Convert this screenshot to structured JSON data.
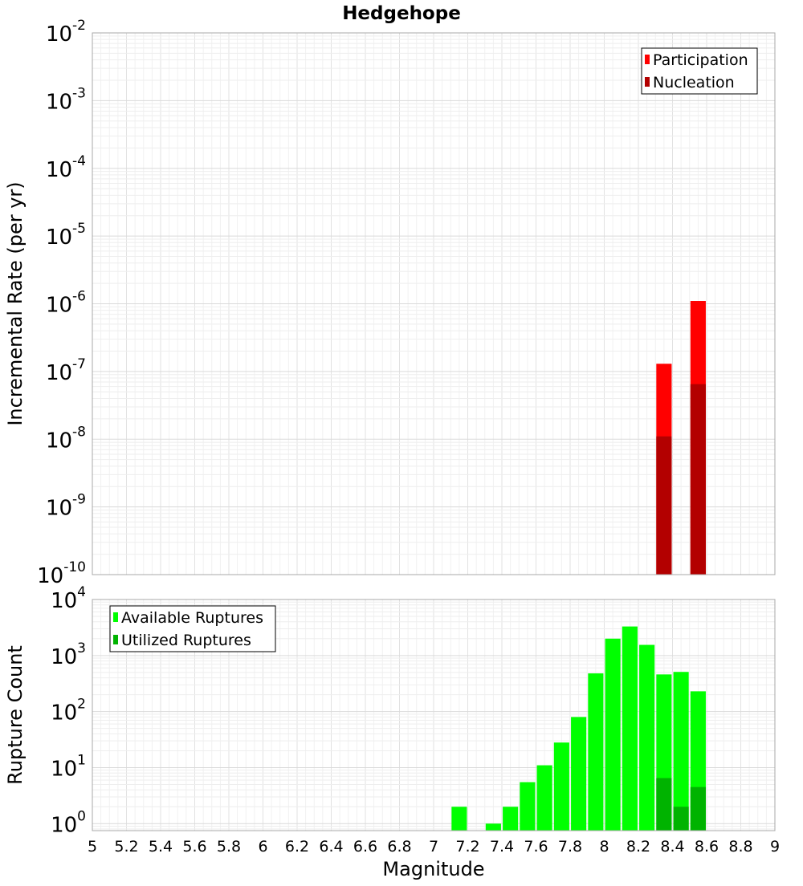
{
  "chart_data": [
    {
      "type": "bar",
      "title": "Hedgehope",
      "xlabel": "",
      "ylabel": "Incremental Rate (per yr)",
      "yscale": "log",
      "xlim": [
        5,
        9
      ],
      "ylim": [
        1e-10,
        0.01
      ],
      "y_tick_exponents": [
        "-10",
        "-9",
        "-8",
        "-7",
        "-6",
        "-5",
        "-4",
        "-3",
        "-2"
      ],
      "y_tick_base": "10",
      "grid": true,
      "legend": "top-right",
      "bar_width": 0.09,
      "series": [
        {
          "name": "Participation",
          "color": "#ff0000",
          "x": [
            8.35,
            8.55
          ],
          "values": [
            1.3e-07,
            1.1e-06
          ]
        },
        {
          "name": "Nucleation",
          "color": "#b30000",
          "x": [
            8.35,
            8.55
          ],
          "values": [
            1.1e-08,
            6.5e-08
          ]
        }
      ]
    },
    {
      "type": "bar",
      "title": "",
      "xlabel": "Magnitude",
      "ylabel": "Rupture Count",
      "yscale": "log",
      "xlim": [
        5,
        9
      ],
      "ylim": [
        0.75,
        10000
      ],
      "x_ticks": [
        "5",
        "5.2",
        "5.4",
        "5.6",
        "5.8",
        "6",
        "6.2",
        "6.4",
        "6.6",
        "6.8",
        "7",
        "7.2",
        "7.4",
        "7.6",
        "7.8",
        "8",
        "8.2",
        "8.4",
        "8.6",
        "8.8",
        "9"
      ],
      "y_tick_exponents": [
        "0",
        "1",
        "2",
        "3",
        "4"
      ],
      "y_tick_base": "10",
      "grid": true,
      "legend": "top-left",
      "bar_width": 0.09,
      "series": [
        {
          "name": "Available Ruptures",
          "color": "#00ff00",
          "x": [
            7.15,
            7.35,
            7.45,
            7.55,
            7.65,
            7.75,
            7.85,
            7.95,
            8.05,
            8.15,
            8.25,
            8.35,
            8.45,
            8.55
          ],
          "values": [
            2,
            1,
            2,
            5.5,
            11,
            28,
            80,
            480,
            2000,
            3300,
            1550,
            460,
            510,
            230
          ]
        },
        {
          "name": "Utilized Ruptures",
          "color": "#00b300",
          "x": [
            8.35,
            8.45,
            8.55
          ],
          "values": [
            6.5,
            2,
            4.5
          ]
        }
      ]
    }
  ]
}
